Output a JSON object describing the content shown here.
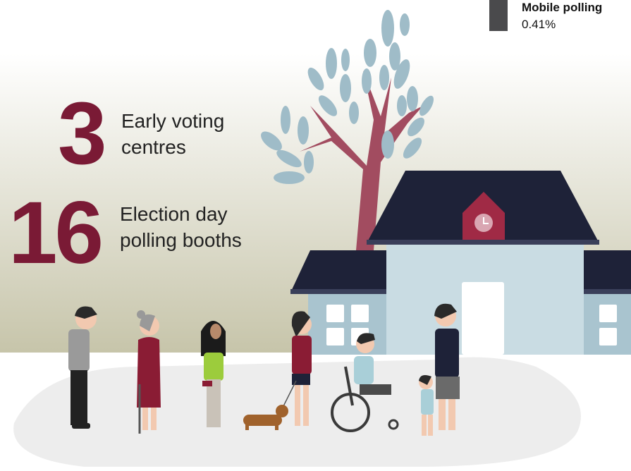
{
  "stats": [
    {
      "number": "3",
      "label_lines": [
        "Early voting",
        "centres"
      ]
    },
    {
      "number": "16",
      "label_lines": [
        "Election day",
        "polling booths"
      ]
    }
  ],
  "legend": {
    "name": "Mobile polling",
    "value": "0.41%",
    "color": "#4a4a4c"
  }
}
